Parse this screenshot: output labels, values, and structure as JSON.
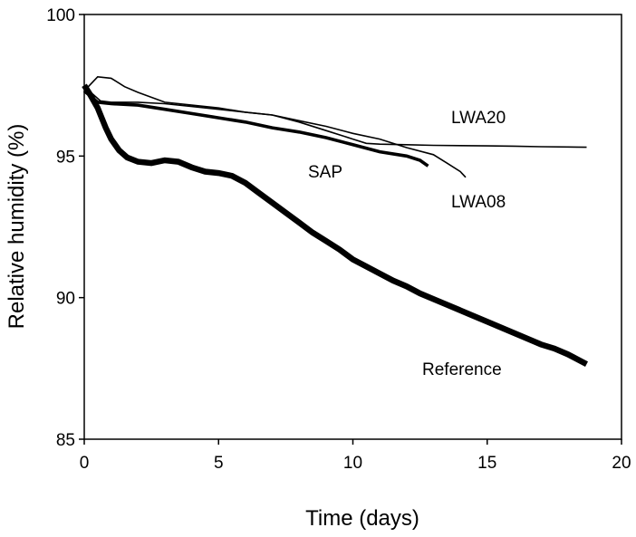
{
  "chart_data": {
    "type": "line",
    "xlabel": "Time (days)",
    "ylabel": "Relative humidity (%)",
    "xlim": [
      0,
      20
    ],
    "ylim": [
      85,
      100
    ],
    "xticks": [
      "0",
      "5",
      "10",
      "15",
      "20"
    ],
    "yticks": [
      "85",
      "90",
      "95",
      "100"
    ],
    "grid": false,
    "legend": "none (series labeled inline)",
    "series": [
      {
        "name": "LWA20",
        "stroke": "thin",
        "x": [
          0,
          0.3,
          0.6,
          1.0,
          2.0,
          3.0,
          4.0,
          5.0,
          6.0,
          7.0,
          8.0,
          9.0,
          10.0,
          10.5,
          11.0,
          12.0,
          13.0,
          14.0,
          15.0,
          16.0,
          17.0,
          18.0,
          18.7
        ],
        "y": [
          97.4,
          97.2,
          96.95,
          96.9,
          96.9,
          96.85,
          96.75,
          96.65,
          96.55,
          96.45,
          96.2,
          95.9,
          95.6,
          95.45,
          95.42,
          95.4,
          95.38,
          95.37,
          95.36,
          95.35,
          95.33,
          95.32,
          95.31
        ]
      },
      {
        "name": "LWA08",
        "stroke": "thin",
        "x": [
          0,
          0.2,
          0.5,
          1.0,
          1.5,
          2.0,
          3.0,
          4.0,
          5.0,
          6.0,
          7.0,
          8.0,
          9.0,
          10.0,
          11.0,
          12.0,
          13.0,
          13.5,
          14.0,
          14.2
        ],
        "y": [
          97.3,
          97.5,
          97.8,
          97.75,
          97.45,
          97.25,
          96.9,
          96.8,
          96.7,
          96.55,
          96.45,
          96.25,
          96.05,
          95.8,
          95.6,
          95.3,
          95.05,
          94.75,
          94.45,
          94.25
        ]
      },
      {
        "name": "SAP",
        "stroke": "thick",
        "x": [
          0,
          0.5,
          1.0,
          2.0,
          3.0,
          4.0,
          5.0,
          6.0,
          7.0,
          8.0,
          9.0,
          10.0,
          11.0,
          12.0,
          12.5,
          12.8
        ],
        "y": [
          97.3,
          96.9,
          96.85,
          96.8,
          96.65,
          96.5,
          96.35,
          96.2,
          96.0,
          95.85,
          95.65,
          95.4,
          95.15,
          95.0,
          94.85,
          94.65
        ]
      },
      {
        "name": "Reference",
        "stroke": "thickest",
        "x": [
          0,
          0.2,
          0.5,
          0.8,
          1.0,
          1.3,
          1.6,
          2.0,
          2.5,
          3.0,
          3.5,
          4.0,
          4.5,
          5.0,
          5.5,
          6.0,
          6.5,
          7.0,
          7.5,
          8.0,
          8.5,
          9.0,
          9.5,
          10.0,
          10.5,
          11.0,
          11.5,
          12.0,
          12.5,
          13.0,
          13.5,
          14.0,
          14.5,
          15.0,
          15.5,
          16.0,
          16.5,
          17.0,
          17.5,
          18.0,
          18.3,
          18.7
        ],
        "y": [
          97.5,
          97.2,
          96.7,
          96.0,
          95.6,
          95.2,
          94.95,
          94.8,
          94.75,
          94.85,
          94.8,
          94.6,
          94.45,
          94.4,
          94.3,
          94.05,
          93.7,
          93.35,
          93.0,
          92.65,
          92.3,
          92.0,
          91.7,
          91.35,
          91.1,
          90.85,
          90.6,
          90.4,
          90.15,
          89.95,
          89.75,
          89.55,
          89.35,
          89.15,
          88.95,
          88.75,
          88.55,
          88.35,
          88.2,
          88.0,
          87.85,
          87.65
        ]
      }
    ]
  }
}
